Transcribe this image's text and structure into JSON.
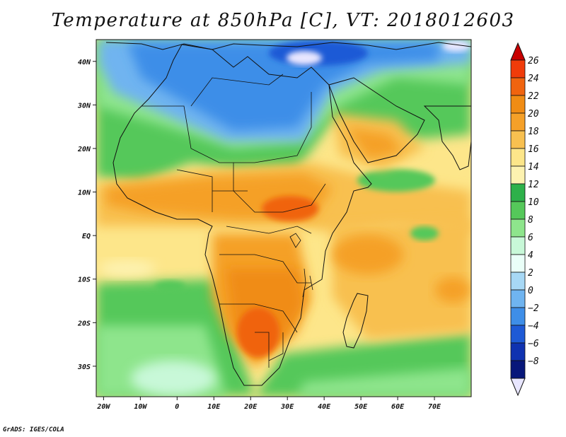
{
  "title": "Temperature at 850hPa [C], VT: 2018012603",
  "footer": "GrADS: IGES/COLA",
  "map": {
    "lon_range": [
      -22,
      80
    ],
    "lat_range": [
      -37,
      45
    ],
    "lat_ticks": [
      {
        "value": 40,
        "label": "40N"
      },
      {
        "value": 30,
        "label": "30N"
      },
      {
        "value": 20,
        "label": "20N"
      },
      {
        "value": 10,
        "label": "10N"
      },
      {
        "value": 0,
        "label": "EQ"
      },
      {
        "value": -10,
        "label": "10S"
      },
      {
        "value": -20,
        "label": "20S"
      },
      {
        "value": -30,
        "label": "30S"
      }
    ],
    "lon_ticks": [
      {
        "value": -20,
        "label": "20W"
      },
      {
        "value": -10,
        "label": "10W"
      },
      {
        "value": 0,
        "label": "0"
      },
      {
        "value": 10,
        "label": "10E"
      },
      {
        "value": 20,
        "label": "20E"
      },
      {
        "value": 30,
        "label": "30E"
      },
      {
        "value": 40,
        "label": "40E"
      },
      {
        "value": 50,
        "label": "50E"
      },
      {
        "value": 60,
        "label": "60E"
      },
      {
        "value": 70,
        "label": "70E"
      }
    ]
  },
  "colorbar": {
    "levels": [
      26,
      24,
      22,
      20,
      18,
      16,
      14,
      12,
      10,
      8,
      6,
      4,
      2,
      0,
      -2,
      -4,
      -6,
      -8
    ],
    "colors": [
      "#c80000",
      "#f03c0a",
      "#f0640f",
      "#f08c14",
      "#f5a028",
      "#f8c050",
      "#fde68a",
      "#fdf2b0",
      "#2eb14a",
      "#55c85a",
      "#8ee58c",
      "#c8f8d8",
      "#eafff8",
      "#a7d8f5",
      "#6fb4f0",
      "#3e8ee8",
      "#1e5ad6",
      "#0f32b0",
      "#07177a",
      "#e8e6ff"
    ]
  },
  "fields": {
    "hot_core": "#f0640f",
    "ocean_south": "#8ee58c",
    "north_blue": "#3e8ee8"
  }
}
